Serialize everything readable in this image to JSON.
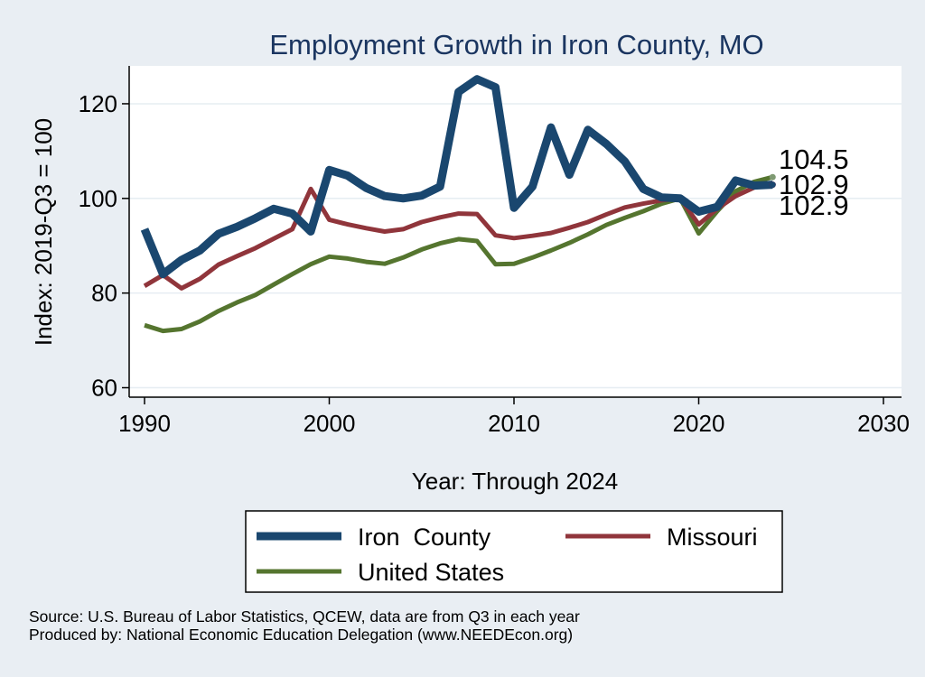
{
  "chart_data": {
    "type": "line",
    "title": "Employment Growth in Iron County, MO",
    "xlabel": "Year: Through 2024",
    "ylabel": "Index: 2019-Q3 = 100",
    "xlim": [
      1990,
      2030
    ],
    "ylim": [
      58,
      128
    ],
    "xticks": [
      1990,
      2000,
      2010,
      2020,
      2030
    ],
    "yticks": [
      60,
      80,
      100,
      120
    ],
    "grid": true,
    "legend_position": "bottom",
    "x": [
      1990,
      1991,
      1992,
      1993,
      1994,
      1995,
      1996,
      1997,
      1998,
      1999,
      2000,
      2001,
      2002,
      2003,
      2004,
      2005,
      2006,
      2007,
      2008,
      2009,
      2010,
      2011,
      2012,
      2013,
      2014,
      2015,
      2016,
      2017,
      2018,
      2019,
      2020,
      2021,
      2022,
      2023,
      2024
    ],
    "series": [
      {
        "name": "Iron  County",
        "color": "#1a476f",
        "values": [
          93.5,
          84.0,
          87.0,
          89.0,
          92.5,
          94.0,
          95.8,
          97.8,
          96.8,
          93.0,
          106.0,
          104.8,
          102.2,
          100.5,
          100.0,
          100.6,
          102.5,
          122.5,
          125.2,
          123.5,
          98.0,
          102.5,
          115.0,
          105.0,
          114.5,
          111.5,
          107.8,
          102.0,
          100.2,
          100.0,
          97.2,
          98.2,
          103.8,
          102.7,
          102.9
        ],
        "end_label": "102.9"
      },
      {
        "name": "Missouri",
        "color": "#90353b",
        "values": [
          81.5,
          83.8,
          81.0,
          83.0,
          86.0,
          87.8,
          89.5,
          91.5,
          93.5,
          102.0,
          95.5,
          94.5,
          93.7,
          93.0,
          93.5,
          95.0,
          96.0,
          96.8,
          96.7,
          92.2,
          91.6,
          92.1,
          92.7,
          93.8,
          95.0,
          96.6,
          98.1,
          98.9,
          99.6,
          100.0,
          94.5,
          97.8,
          100.5,
          102.3,
          102.9
        ],
        "end_label": "102.9"
      },
      {
        "name": "United States",
        "color": "#55752f",
        "values": [
          73.2,
          72.0,
          72.4,
          74.0,
          76.2,
          78.0,
          79.6,
          81.8,
          84.0,
          86.1,
          87.7,
          87.3,
          86.6,
          86.2,
          87.5,
          89.2,
          90.5,
          91.4,
          91.0,
          86.1,
          86.2,
          87.5,
          89.0,
          90.6,
          92.4,
          94.4,
          95.9,
          97.3,
          98.9,
          100.0,
          92.6,
          97.3,
          101.5,
          103.5,
          104.5
        ],
        "end_label": "104.5"
      }
    ]
  },
  "source_note": "Source: U.S. Bureau of Labor Statistics, QCEW, data are from Q3 in each year",
  "producer_note": "Produced by: National Economic Education Delegation (www.NEEDEcon.org)"
}
